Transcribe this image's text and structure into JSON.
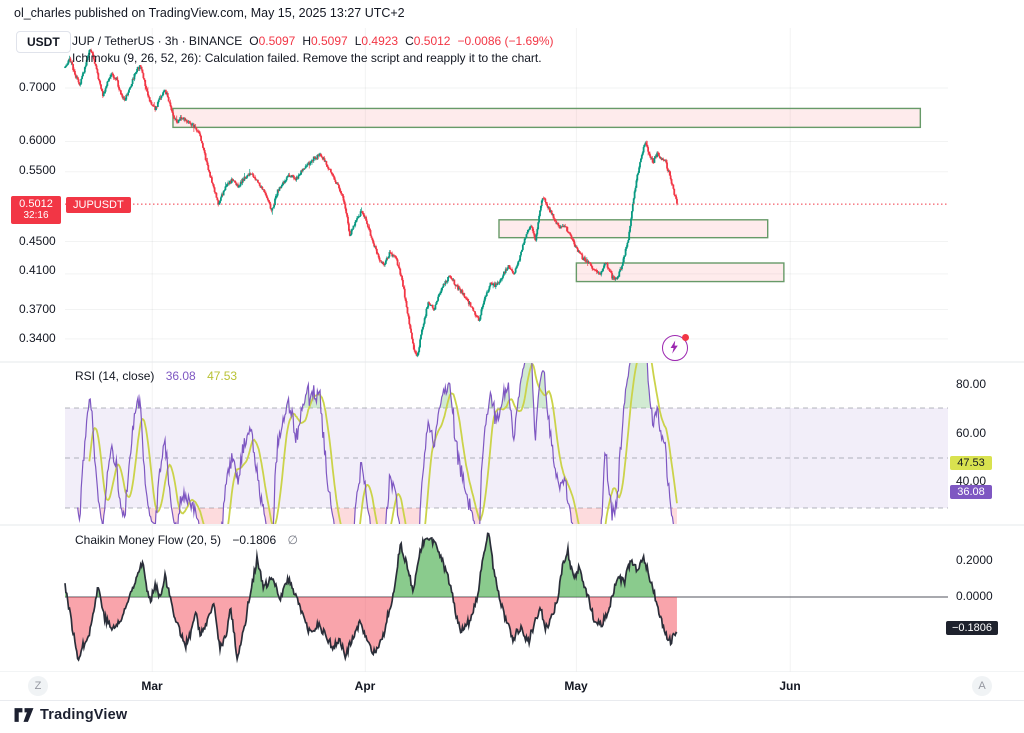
{
  "header": {
    "published": "ol_charles published on TradingView.com, May 15, 2025 13:27 UTC+2"
  },
  "toolbar": {
    "currency": "USDT"
  },
  "legend": {
    "symbol": "JUP / TetherUS · 3h · BINANCE",
    "ohlc": [
      {
        "k": "O",
        "v": "0.5097"
      },
      {
        "k": "H",
        "v": "0.5097"
      },
      {
        "k": "L",
        "v": "0.4923"
      },
      {
        "k": "C",
        "v": "0.5012"
      }
    ],
    "change": "−0.0086 (−1.69%)",
    "error": "Ichimoku (9, 26, 52, 26): Calculation failed. Remove the script and reapply it to the chart."
  },
  "price_scale": {
    "ticks": [
      "0.7000",
      "0.6000",
      "0.5500",
      "0.4500",
      "0.4100",
      "0.3700",
      "0.3400"
    ],
    "last_price": "0.5012",
    "countdown": "32:16",
    "symbol_label": "JUPUSDT"
  },
  "rsi_panel": {
    "title": "RSI (14, close)",
    "value_main": "36.08",
    "value_ma": "47.53",
    "ticks": [
      "80.00",
      "60.00",
      "40.00"
    ]
  },
  "cmf_panel": {
    "title": "Chaikin Money Flow (20, 5)",
    "value": "−0.1806",
    "empty_symbol": "∅",
    "ticks": [
      "0.2000",
      "0.0000"
    ]
  },
  "time_scale": {
    "ticks": [
      "Mar",
      "Apr",
      "May",
      "Jun"
    ],
    "left_badge": "Z",
    "right_badge": "A"
  },
  "footer": {
    "brand": "TradingView"
  },
  "colors": {
    "up": "#089981",
    "down": "#f23645",
    "rsi": "#7e57c2",
    "rsi_ma": "#cbd34a",
    "cmf_outline": "#2a2e39",
    "cmf_pos": "rgba(76,175,80,0.65)",
    "cmf_neg": "rgba(242,54,69,0.45)",
    "zone_fill": "rgba(242,54,69,0.10)",
    "zone_border": "#679a68",
    "band_fill": "rgba(126,87,194,0.10)",
    "grid": "rgba(42,46,57,0.06)",
    "accent_red": "#f23645"
  },
  "chart_data": {
    "type": "candlestick",
    "symbol": "JUP/USDT",
    "exchange": "BINANCE",
    "interval": "3h",
    "price_scale_type": "log",
    "current": {
      "open": 0.5097,
      "high": 0.5097,
      "low": 0.4923,
      "close": 0.5012,
      "change": -0.0086,
      "change_pct": -1.69
    },
    "last_price": 0.5012,
    "x_axis": {
      "unit": "days",
      "total_days": 87,
      "month_ticks": [
        {
          "label": "Mar",
          "day": 12.4
        },
        {
          "label": "Apr",
          "day": 42.7
        },
        {
          "label": "May",
          "day": 72.7
        },
        {
          "label": "Jun",
          "day": 103.1
        }
      ]
    },
    "y_axis": {
      "type": "log",
      "ticks": [
        0.7,
        0.6,
        0.55,
        0.45,
        0.41,
        0.37,
        0.34
      ]
    },
    "close_waypoints": [
      [
        0,
        0.745
      ],
      [
        0.7,
        0.762
      ],
      [
        1.4,
        0.728
      ],
      [
        2.1,
        0.705
      ],
      [
        2.8,
        0.742
      ],
      [
        3.6,
        0.785
      ],
      [
        4.3,
        0.748
      ],
      [
        5.4,
        0.682
      ],
      [
        6.0,
        0.712
      ],
      [
        6.5,
        0.728
      ],
      [
        7.3,
        0.718
      ],
      [
        8.0,
        0.686
      ],
      [
        8.5,
        0.675
      ],
      [
        9.2,
        0.7
      ],
      [
        10.0,
        0.73
      ],
      [
        10.7,
        0.748
      ],
      [
        11.2,
        0.718
      ],
      [
        11.8,
        0.685
      ],
      [
        12.4,
        0.663
      ],
      [
        12.9,
        0.66
      ],
      [
        13.5,
        0.68
      ],
      [
        14.2,
        0.698
      ],
      [
        14.8,
        0.673
      ],
      [
        15.3,
        0.648
      ],
      [
        15.9,
        0.634
      ],
      [
        16.6,
        0.643
      ],
      [
        17.5,
        0.636
      ],
      [
        18.3,
        0.628
      ],
      [
        19.0,
        0.618
      ],
      [
        19.6,
        0.59
      ],
      [
        20.3,
        0.555
      ],
      [
        21.0,
        0.532
      ],
      [
        21.8,
        0.499
      ],
      [
        22.3,
        0.513
      ],
      [
        22.9,
        0.528
      ],
      [
        23.8,
        0.537
      ],
      [
        24.6,
        0.527
      ],
      [
        25.5,
        0.541
      ],
      [
        26.3,
        0.549
      ],
      [
        27.2,
        0.538
      ],
      [
        28.0,
        0.524
      ],
      [
        28.9,
        0.506
      ],
      [
        29.4,
        0.491
      ],
      [
        30.3,
        0.522
      ],
      [
        31.1,
        0.533
      ],
      [
        32.0,
        0.546
      ],
      [
        32.9,
        0.539
      ],
      [
        33.7,
        0.553
      ],
      [
        34.6,
        0.563
      ],
      [
        35.4,
        0.572
      ],
      [
        36.3,
        0.578
      ],
      [
        37.1,
        0.564
      ],
      [
        38.0,
        0.546
      ],
      [
        38.8,
        0.529
      ],
      [
        39.7,
        0.504
      ],
      [
        40.5,
        0.458
      ],
      [
        41.4,
        0.478
      ],
      [
        42.1,
        0.49
      ],
      [
        42.8,
        0.479
      ],
      [
        43.7,
        0.452
      ],
      [
        44.5,
        0.431
      ],
      [
        45.4,
        0.42
      ],
      [
        46.2,
        0.436
      ],
      [
        47.1,
        0.427
      ],
      [
        47.9,
        0.404
      ],
      [
        48.8,
        0.362
      ],
      [
        49.6,
        0.331
      ],
      [
        50.1,
        0.324
      ],
      [
        50.8,
        0.35
      ],
      [
        51.6,
        0.376
      ],
      [
        52.5,
        0.371
      ],
      [
        53.1,
        0.386
      ],
      [
        53.9,
        0.398
      ],
      [
        54.8,
        0.408
      ],
      [
        55.6,
        0.396
      ],
      [
        56.5,
        0.388
      ],
      [
        57.3,
        0.379
      ],
      [
        58.2,
        0.366
      ],
      [
        58.9,
        0.359
      ],
      [
        59.6,
        0.382
      ],
      [
        60.5,
        0.398
      ],
      [
        61.3,
        0.396
      ],
      [
        62.2,
        0.408
      ],
      [
        63.0,
        0.42
      ],
      [
        63.9,
        0.41
      ],
      [
        64.7,
        0.43
      ],
      [
        65.6,
        0.462
      ],
      [
        66.3,
        0.47
      ],
      [
        66.9,
        0.452
      ],
      [
        67.6,
        0.498
      ],
      [
        68.0,
        0.512
      ],
      [
        68.6,
        0.498
      ],
      [
        69.3,
        0.486
      ],
      [
        70.1,
        0.47
      ],
      [
        71.0,
        0.472
      ],
      [
        71.8,
        0.458
      ],
      [
        72.7,
        0.442
      ],
      [
        73.5,
        0.43
      ],
      [
        74.4,
        0.424
      ],
      [
        75.2,
        0.414
      ],
      [
        76.1,
        0.41
      ],
      [
        76.9,
        0.424
      ],
      [
        77.8,
        0.406
      ],
      [
        78.5,
        0.404
      ],
      [
        79.2,
        0.42
      ],
      [
        80.1,
        0.455
      ],
      [
        80.9,
        0.515
      ],
      [
        81.8,
        0.57
      ],
      [
        82.5,
        0.597
      ],
      [
        83.1,
        0.578
      ],
      [
        83.6,
        0.565
      ],
      [
        84.2,
        0.58
      ],
      [
        84.8,
        0.572
      ],
      [
        85.3,
        0.567
      ],
      [
        85.9,
        0.548
      ],
      [
        86.5,
        0.522
      ],
      [
        87,
        0.5012
      ]
    ],
    "zones": [
      {
        "day_from": 15.35,
        "day_to": 121.6,
        "price_from": 0.625,
        "price_to": 0.66
      },
      {
        "day_from": 61.7,
        "day_to": 99.9,
        "price_from": 0.455,
        "price_to": 0.479
      },
      {
        "day_from": 72.7,
        "day_to": 102.2,
        "price_from": 0.401,
        "price_to": 0.423
      }
    ],
    "indicators": [
      {
        "name": "RSI",
        "params": [
          14,
          "close"
        ],
        "value": 36.08,
        "ma_value": 47.53,
        "levels": [
          70,
          50,
          30
        ],
        "band": [
          30,
          70
        ],
        "y_ticks": [
          80,
          60,
          40
        ]
      },
      {
        "name": "Chaikin Money Flow",
        "params": [
          20,
          5
        ],
        "value": -0.1806,
        "y_ticks": [
          0.2,
          0.0
        ],
        "waypoints": [
          [
            0,
            0.08
          ],
          [
            0.3,
            0
          ],
          [
            1.8,
            -0.34
          ],
          [
            3.6,
            -0.18
          ],
          [
            4.7,
            0.06
          ],
          [
            5.7,
            -0.12
          ],
          [
            6.8,
            -0.18
          ],
          [
            8.1,
            -0.12
          ],
          [
            8.8,
            -0.04
          ],
          [
            10.0,
            0.1
          ],
          [
            11.0,
            0.2
          ],
          [
            11.7,
            0.03
          ],
          [
            12.1,
            -0.03
          ],
          [
            12.8,
            0.08
          ],
          [
            13.5,
            0.0
          ],
          [
            14.2,
            0.12
          ],
          [
            14.9,
            0.0
          ],
          [
            15.8,
            -0.13
          ],
          [
            17.1,
            -0.27
          ],
          [
            18.1,
            -0.18
          ],
          [
            18.5,
            -0.08
          ],
          [
            19.3,
            -0.21
          ],
          [
            20.3,
            -0.14
          ],
          [
            21.1,
            -0.03
          ],
          [
            22.0,
            -0.28
          ],
          [
            23.0,
            -0.21
          ],
          [
            23.5,
            -0.05
          ],
          [
            24.5,
            -0.34
          ],
          [
            25.6,
            -0.15
          ],
          [
            26.2,
            0.0
          ],
          [
            27.3,
            0.21
          ],
          [
            28.2,
            0.05
          ],
          [
            29.4,
            0.1
          ],
          [
            30.6,
            0.0
          ],
          [
            31.7,
            0.1
          ],
          [
            33.0,
            0.0
          ],
          [
            34.1,
            -0.14
          ],
          [
            34.9,
            -0.21
          ],
          [
            36.0,
            -0.15
          ],
          [
            38.1,
            -0.28
          ],
          [
            39.1,
            -0.24
          ],
          [
            39.8,
            -0.33
          ],
          [
            40.8,
            -0.24
          ],
          [
            41.9,
            -0.14
          ],
          [
            43.0,
            -0.26
          ],
          [
            44.1,
            -0.32
          ],
          [
            45.2,
            -0.23
          ],
          [
            46.2,
            -0.05
          ],
          [
            46.6,
            0.0
          ],
          [
            47.7,
            0.3
          ],
          [
            48.6,
            0.17
          ],
          [
            49.5,
            0.03
          ],
          [
            50.5,
            0.26
          ],
          [
            51.5,
            0.345
          ],
          [
            52.6,
            0.3
          ],
          [
            53.8,
            0.18
          ],
          [
            54.8,
            0.06
          ],
          [
            55.5,
            -0.08
          ],
          [
            56.2,
            -0.18
          ],
          [
            57.6,
            -0.13
          ],
          [
            58.7,
            0.0
          ],
          [
            59.4,
            0.22
          ],
          [
            60.2,
            0.35
          ],
          [
            60.9,
            0.17
          ],
          [
            61.7,
            0.0
          ],
          [
            62.6,
            -0.12
          ],
          [
            63.7,
            -0.23
          ],
          [
            64.7,
            -0.17
          ],
          [
            65.9,
            -0.25
          ],
          [
            66.9,
            -0.12
          ],
          [
            67.6,
            -0.05
          ],
          [
            68.3,
            -0.18
          ],
          [
            69.3,
            -0.1
          ],
          [
            70.1,
            0.0
          ],
          [
            70.8,
            0.18
          ],
          [
            71.5,
            0.25
          ],
          [
            72.3,
            0.1
          ],
          [
            73.0,
            0.16
          ],
          [
            73.8,
            0.06
          ],
          [
            74.4,
            0.0
          ],
          [
            75.2,
            -0.12
          ],
          [
            76.1,
            -0.16
          ],
          [
            77.1,
            -0.1
          ],
          [
            77.8,
            0.0
          ],
          [
            78.7,
            0.12
          ],
          [
            79.5,
            0.08
          ],
          [
            80.4,
            0.2
          ],
          [
            81.4,
            0.15
          ],
          [
            82.2,
            0.22
          ],
          [
            83.2,
            0.1
          ],
          [
            83.9,
            0.0
          ],
          [
            84.6,
            -0.1
          ],
          [
            85.5,
            -0.22
          ],
          [
            86.2,
            -0.25
          ],
          [
            87,
            -0.1806
          ]
        ]
      }
    ]
  }
}
